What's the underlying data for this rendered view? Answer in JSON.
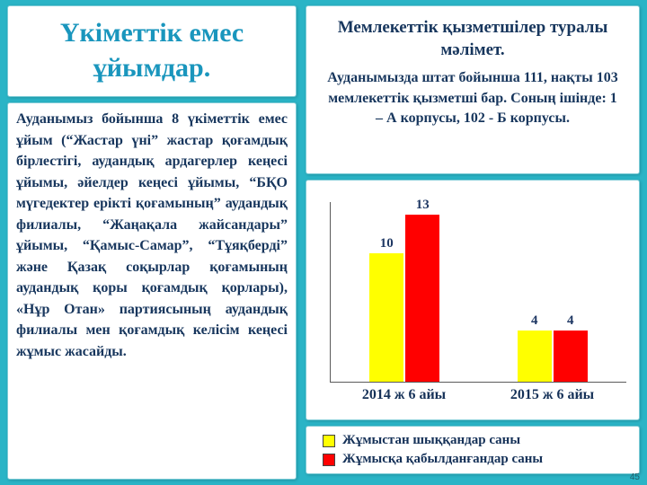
{
  "slide": {
    "background_color": "#2ab4c6",
    "page_number": "45"
  },
  "left": {
    "title": "Үкіметтік емес ұйымдар.",
    "body": "Ауданымыз бойынша 8 үкіметтік емес ұйым (“Жастар үні” жастар қоғамдық бірлестігі, аудандық ардагерлер кеңесі ұйымы, әйелдер кеңесі ұйымы, “БҚО мүгедектер ерікті қоғамының” аудандық филиалы, “Жаңақала жайсандары” ұйымы, “Қамыс-Самар”, “Тұяқберді” және Қазақ соқырлар қоғамының аудандық қоры қоғамдық қорлары), «Нұр Отан» партиясының аудандық филиалы мен қоғамдық келісім кеңесі жұмыс жасайды."
  },
  "right": {
    "info_title": "Мемлекеттік қызметшілер туралы мәлімет.",
    "info_body": "Ауданымызда штат бойынша 111, нақты 103 мемлекеттік қызметші бар. Соның ішінде: 1 – А корпусы, 102 - Б корпусы."
  },
  "chart_data": {
    "type": "bar",
    "categories": [
      "2014 ж 6 айы",
      "2015 ж 6 айы"
    ],
    "series": [
      {
        "name": "Жұмыстан шыққандар саны",
        "color": "#ffff00",
        "values": [
          10,
          4
        ]
      },
      {
        "name": "Жұмысқа қабылданғандар саны",
        "color": "#ff0000",
        "values": [
          13,
          4
        ]
      }
    ],
    "title": "",
    "xlabel": "",
    "ylabel": "",
    "ylim": [
      0,
      14
    ],
    "grid": false,
    "legend_position": "bottom",
    "data_labels": true
  }
}
